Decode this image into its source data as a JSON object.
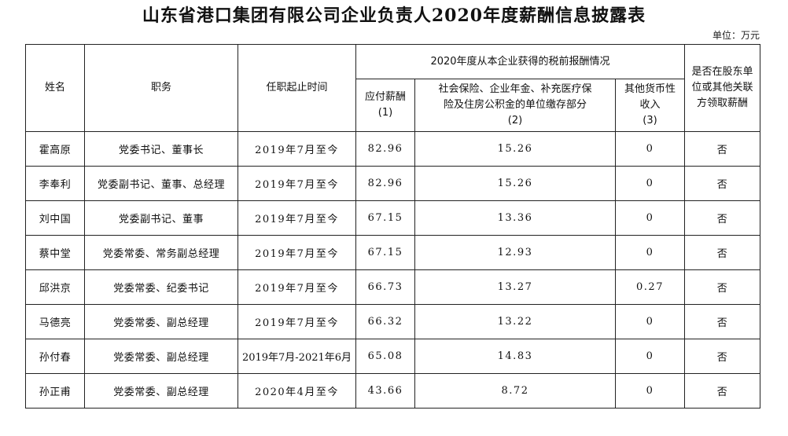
{
  "title": "山东省港口集团有限公司企业负责人2020年度薪酬信息披露表",
  "unit": "单位：万元",
  "headers": {
    "name": "姓名",
    "position": "职务",
    "term": "任职起止时间",
    "group": "2020年度从本企业获得的税前报酬情况",
    "salary_line1": "应付薪酬",
    "salary_line2": "(1)",
    "insurance_line1": "社会保险、企业年金、补充医疗保",
    "insurance_line2": "险及住房公积金的单位缴存部分",
    "insurance_line3": "(2)",
    "other_line1": "其他货币性",
    "other_line2": "收入",
    "other_line3": "(3)",
    "related_line1": "是否在股东单",
    "related_line2": "位或其他关联",
    "related_line3": "方领取薪酬"
  },
  "rows": [
    {
      "name": "霍高原",
      "position": "党委书记、董事长",
      "term": "2019年7月至今",
      "salary": "82.96",
      "insurance": "15.26",
      "other": "0",
      "related": "否"
    },
    {
      "name": "李奉利",
      "position": "党委副书记、董事、总经理",
      "term": "2019年7月至今",
      "salary": "82.96",
      "insurance": "15.26",
      "other": "0",
      "related": "否"
    },
    {
      "name": "刘中国",
      "position": "党委副书记、董事",
      "term": "2019年7月至今",
      "salary": "67.15",
      "insurance": "13.36",
      "other": "0",
      "related": "否"
    },
    {
      "name": "蔡中堂",
      "position": "党委常委、常务副总经理",
      "term": "2019年7月至今",
      "salary": "67.15",
      "insurance": "12.93",
      "other": "0",
      "related": "否"
    },
    {
      "name": "邱洪京",
      "position": "党委常委、纪委书记",
      "term": "2019年7月至今",
      "salary": "66.73",
      "insurance": "13.27",
      "other": "0.27",
      "related": "否"
    },
    {
      "name": "马德亮",
      "position": "党委常委、副总经理",
      "term": "2019年7月至今",
      "salary": "66.32",
      "insurance": "13.22",
      "other": "0",
      "related": "否"
    },
    {
      "name": "孙付春",
      "position": "党委常委、副总经理",
      "term": "2019年7月-2021年6月",
      "salary": "65.08",
      "insurance": "14.83",
      "other": "0",
      "related": "否"
    },
    {
      "name": "孙正甫",
      "position": "党委常委、副总经理",
      "term": "2020年4月至今",
      "salary": "43.66",
      "insurance": "8.72",
      "other": "0",
      "related": "否"
    }
  ]
}
